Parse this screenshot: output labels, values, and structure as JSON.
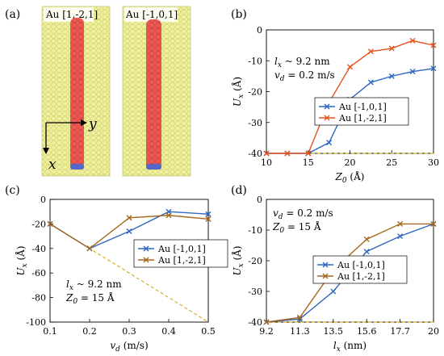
{
  "panel_labels": {
    "a": "(a)",
    "b": "(b)",
    "c": "(c)",
    "d": "(d)"
  },
  "panel_a": {
    "structure_1_label": "Au [1,-2,1]",
    "structure_2_label": "Au [-1,0,1]",
    "axis_y_label": "y",
    "axis_x_label": "x",
    "colors": {
      "substrate": "#f0f29a",
      "substrate_line": "#c9c77a",
      "chain": "#ec5a55",
      "chain_end": "#5567c9"
    }
  },
  "colors": {
    "blue": "#2f67c1",
    "orange": "#e4531e",
    "brown": "#a5671e",
    "dashed": "#d6b21b"
  },
  "chart_data": [
    {
      "id": "b",
      "type": "line",
      "ylabel_main": "U",
      "ylabel_sub": "x",
      "ylabel_unit": "(Å)",
      "xlabel_main": "Z",
      "xlabel_sub": "0",
      "xlabel_unit": "(Å)",
      "xlim": [
        10,
        30
      ],
      "ylim": [
        -40,
        0
      ],
      "xticks": [
        10,
        15,
        20,
        25,
        30
      ],
      "yticks": [
        0,
        -10,
        -20,
        -30,
        -40
      ],
      "annotations": [
        "l_x ~ 9.2 nm",
        "v_d = 0.2 m/s"
      ],
      "legend_position": "center-right",
      "series": [
        {
          "name": "Au [-1,0,1]",
          "color": "blue",
          "x": [
            10,
            12.5,
            15,
            17.5,
            20,
            22.5,
            25,
            27.5,
            30
          ],
          "y": [
            -40,
            -40,
            -40,
            -36.5,
            -22.5,
            -17,
            -15,
            -13.5,
            -12.5
          ]
        },
        {
          "name": "Au [1,-2,1]",
          "color": "orange",
          "x": [
            10,
            12.5,
            15,
            17.5,
            20,
            22.5,
            25,
            27.5,
            30
          ],
          "y": [
            -40,
            -40,
            -40,
            -23.5,
            -12,
            -7,
            -6,
            -3.5,
            -5
          ]
        }
      ],
      "reference_line": {
        "style": "dashed",
        "color": "dashed",
        "x": [
          10,
          30
        ],
        "y": [
          -40,
          -40
        ]
      }
    },
    {
      "id": "c",
      "type": "line",
      "ylabel_main": "U",
      "ylabel_sub": "x",
      "ylabel_unit": "(Å)",
      "xlabel_main": "v",
      "xlabel_sub": "d",
      "xlabel_unit": "(m/s)",
      "xlim": [
        0.1,
        0.5
      ],
      "ylim": [
        -100,
        0
      ],
      "xticks": [
        0.1,
        0.2,
        0.3,
        0.4,
        0.5
      ],
      "yticks": [
        0,
        -20,
        -40,
        -60,
        -80,
        -100
      ],
      "annotations": [
        "l_x ~ 9.2 nm",
        "Z_0 = 15 Å"
      ],
      "legend_position": "right",
      "series": [
        {
          "name": "Au [-1,0,1]",
          "color": "blue",
          "x": [
            0.1,
            0.2,
            0.3,
            0.4,
            0.5
          ],
          "y": [
            -20,
            -40,
            -26,
            -10,
            -12
          ]
        },
        {
          "name": "Au [1,-2,1]",
          "color": "brown",
          "x": [
            0.1,
            0.2,
            0.3,
            0.4,
            0.5
          ],
          "y": [
            -20,
            -40,
            -15,
            -13,
            -16
          ]
        }
      ],
      "reference_line": {
        "style": "dashed",
        "color": "dashed",
        "x": [
          0.1,
          0.2,
          0.3,
          0.4,
          0.5
        ],
        "y": [
          -20,
          -40,
          -60,
          -80,
          -100
        ]
      }
    },
    {
      "id": "d",
      "type": "line",
      "ylabel_main": "U",
      "ylabel_sub": "x",
      "ylabel_unit": "(Å)",
      "xlabel_main": "l",
      "xlabel_sub": "x",
      "xlabel_unit": "(nm)",
      "categories": [
        "9.2",
        "11.3",
        "13.5",
        "15.6",
        "17.7",
        "20"
      ],
      "ylim": [
        -40,
        0
      ],
      "yticks": [
        0,
        -10,
        -20,
        -30,
        -40
      ],
      "annotations": [
        "v_d = 0.2 m/s",
        "Z_0 = 15 Å"
      ],
      "legend_position": "center-right",
      "series": [
        {
          "name": "Au [-1,0,1]",
          "color": "blue",
          "y": [
            -40,
            -39,
            -30,
            -17,
            -12,
            -8
          ]
        },
        {
          "name": "Au [1,-2,1]",
          "color": "brown",
          "y": [
            -40,
            -38.5,
            -23,
            -13,
            -8,
            -8
          ]
        }
      ],
      "reference_line": {
        "style": "dashed",
        "color": "dashed",
        "y": [
          -40,
          -40,
          -40,
          -40,
          -40,
          -40
        ]
      }
    }
  ]
}
